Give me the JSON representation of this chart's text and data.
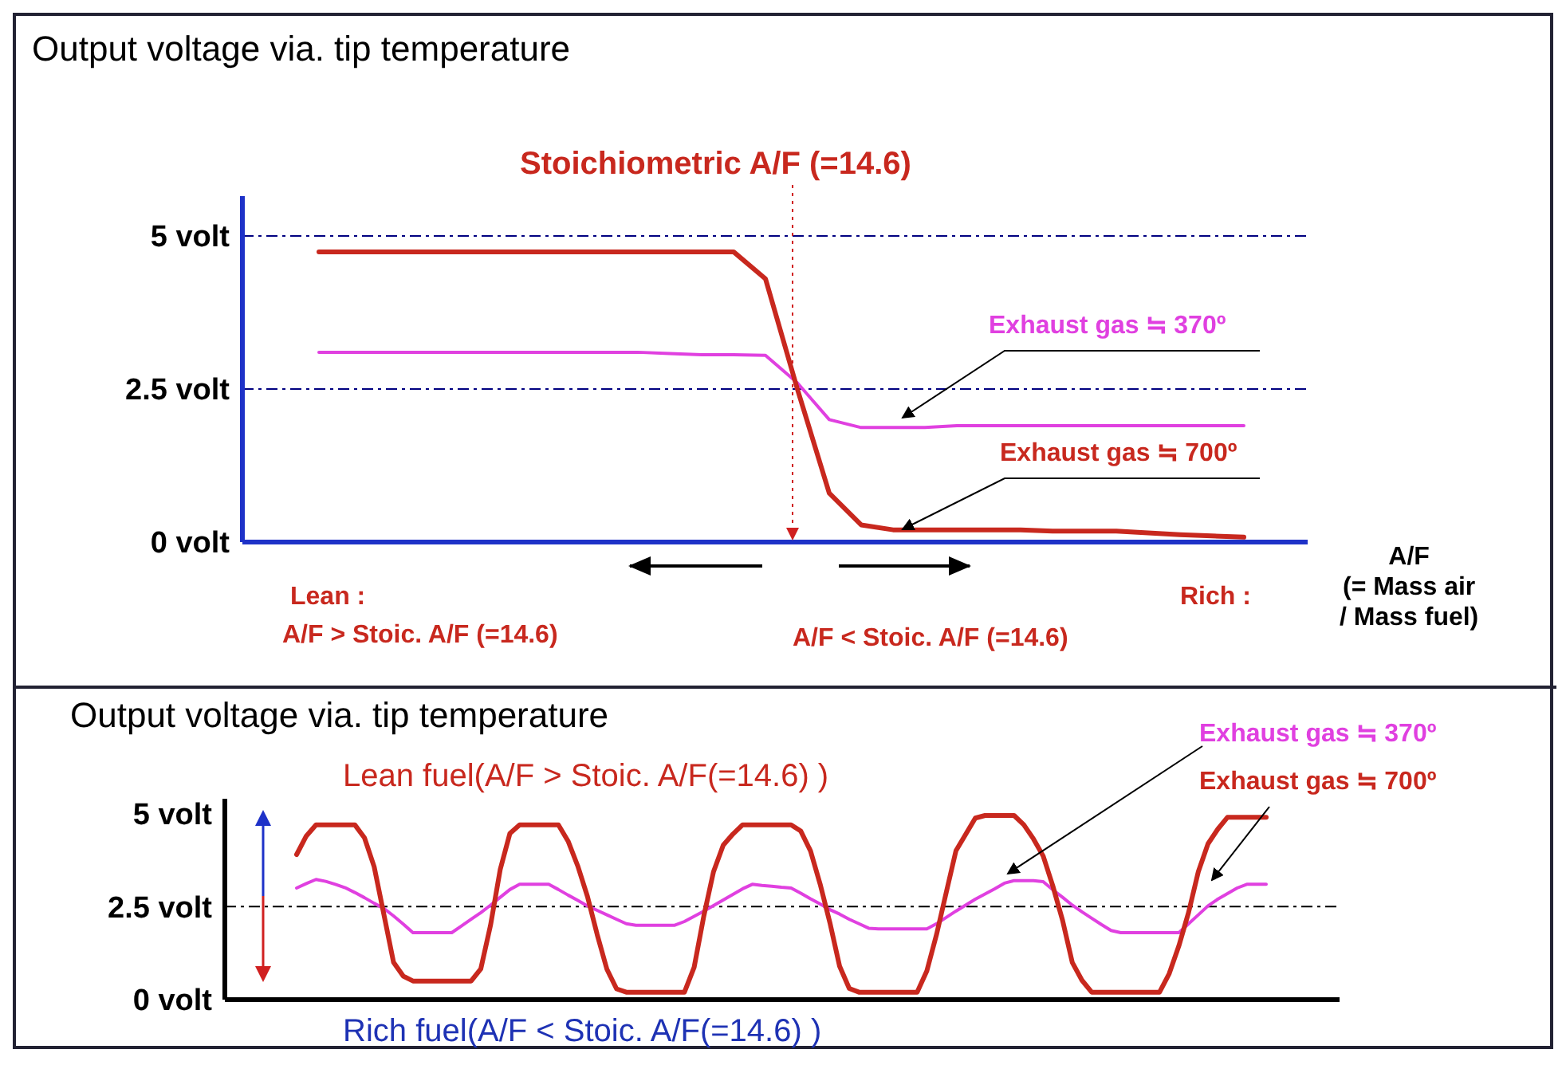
{
  "chart_data": [
    {
      "type": "line",
      "title": "Output voltage via. tip temperature",
      "xlabel": "A/F\n(= Mass air\n/ Mass fuel)",
      "marker": "none",
      "line_style": "solid",
      "grid": false,
      "tick_labels": "y",
      "ylim": [
        0,
        5.65
      ],
      "categories": [
        null,
        null,
        null,
        null,
        null,
        null,
        null,
        null,
        null,
        null,
        null,
        null,
        null,
        null,
        null,
        null,
        null,
        null,
        null,
        null,
        null,
        null,
        null,
        null,
        null,
        null,
        null,
        null,
        null,
        null,
        null,
        null,
        null
      ],
      "yticks": [
        {
          "value": 0,
          "label": "0 volt"
        },
        {
          "value": 2.5,
          "label": "2.5 volt"
        },
        {
          "value": 5,
          "label": "5 volt"
        }
      ],
      "series": [
        {
          "name": "Exhaust gas ≒ 370º",
          "color": "#e040e0",
          "values": [
            null,
            null,
            3.1,
            3.1,
            3.1,
            3.1,
            3.1,
            3.1,
            3.1,
            3.1,
            3.1,
            3.1,
            3.1,
            3.08,
            3.06,
            3.06,
            3.05,
            2.6,
            2.0,
            1.87,
            1.87,
            1.87,
            1.9,
            1.9,
            1.9,
            1.9,
            1.9,
            1.9,
            1.9,
            1.9,
            1.9,
            1.9,
            null
          ]
        },
        {
          "name": "Exhaust gas ≒ 700º",
          "color": "#c8281e",
          "values": [
            null,
            null,
            4.74,
            4.74,
            4.74,
            4.74,
            4.74,
            4.74,
            4.74,
            4.74,
            4.74,
            4.74,
            4.74,
            4.74,
            4.74,
            4.74,
            4.3,
            2.5,
            0.8,
            0.28,
            0.2,
            0.2,
            0.2,
            0.2,
            0.2,
            0.18,
            0.18,
            0.18,
            0.15,
            0.12,
            0.1,
            0.08,
            null
          ]
        }
      ],
      "ref_lines": [
        {
          "axis": "y",
          "value": 5,
          "color": "#000080",
          "line_style": "dashed"
        },
        {
          "axis": "y",
          "value": 2.5,
          "color": "#000080",
          "line_style": "dashed"
        }
      ],
      "annotations": [
        "Stoichiometric A/F (=14.6)",
        "Lean :",
        "A/F > Stoic. A/F (=14.6)",
        "Rich :",
        "A/F < Stoic. A/F (=14.6)"
      ]
    },
    {
      "type": "line",
      "title": "Output voltage via. tip temperature",
      "marker": "none",
      "line_style": "solid",
      "grid": false,
      "tick_labels": "y",
      "ylim": [
        0,
        5.4
      ],
      "categories": [
        null,
        null,
        null,
        null,
        null,
        null,
        null,
        null,
        null,
        null,
        null,
        null,
        null,
        null,
        null,
        null,
        null,
        null,
        null,
        null,
        null,
        null,
        null,
        null,
        null,
        null,
        null,
        null,
        null,
        null,
        null,
        null,
        null,
        null,
        null,
        null,
        null,
        null,
        null,
        null,
        null,
        null,
        null,
        null,
        null,
        null,
        null,
        null,
        null,
        null,
        null,
        null,
        null,
        null,
        null,
        null,
        null,
        null,
        null,
        null,
        null,
        null,
        null,
        null,
        null,
        null,
        null,
        null,
        null,
        null,
        null,
        null,
        null,
        null,
        null,
        null,
        null,
        null,
        null,
        null,
        null,
        null,
        null,
        null,
        null,
        null,
        null,
        null,
        null,
        null,
        null,
        null,
        null,
        null,
        null,
        null,
        null,
        null,
        null,
        null,
        null
      ],
      "yticks": [
        {
          "value": 0,
          "label": "0 volt"
        },
        {
          "value": 2.5,
          "label": "2.5 volt"
        },
        {
          "value": 5,
          "label": "5 volt"
        }
      ],
      "series": [
        {
          "name": "Exhaust gas ≒ 370º",
          "color": "#e040e0",
          "values": [
            3.0,
            3.12,
            3.23,
            3.18,
            3.1,
            3.01,
            2.88,
            2.74,
            2.59,
            2.45,
            2.25,
            2.03,
            1.8,
            1.8,
            1.8,
            1.8,
            1.8,
            1.98,
            2.16,
            2.34,
            2.54,
            2.75,
            2.96,
            3.1,
            3.1,
            3.1,
            3.1,
            2.96,
            2.81,
            2.67,
            2.52,
            2.4,
            2.28,
            2.16,
            2.04,
            2.0,
            2.0,
            2.0,
            2.0,
            2.0,
            2.1,
            2.24,
            2.38,
            2.53,
            2.68,
            2.83,
            2.98,
            3.1,
            3.07,
            3.05,
            3.02,
            3.0,
            2.86,
            2.71,
            2.57,
            2.42,
            2.3,
            2.16,
            2.04,
            1.92,
            1.9,
            1.9,
            1.9,
            1.9,
            1.9,
            1.9,
            2.04,
            2.21,
            2.38,
            2.54,
            2.7,
            2.84,
            2.98,
            3.13,
            3.2,
            3.2,
            3.2,
            3.17,
            2.95,
            2.75,
            2.54,
            2.36,
            2.19,
            2.02,
            1.86,
            1.8,
            1.8,
            1.8,
            1.8,
            1.8,
            1.8,
            1.8,
            2.04,
            2.28,
            2.52,
            2.7,
            2.85,
            3.0,
            3.1,
            3.1,
            3.1
          ]
        },
        {
          "name": "Exhaust gas ≒ 700º",
          "color": "#c8281e",
          "values": [
            3.9,
            4.4,
            4.7,
            4.7,
            4.7,
            4.7,
            4.7,
            4.35,
            3.57,
            2.29,
            1.0,
            0.63,
            0.5,
            0.5,
            0.5,
            0.5,
            0.5,
            0.5,
            0.5,
            0.83,
            2.0,
            3.5,
            4.47,
            4.7,
            4.7,
            4.7,
            4.7,
            4.7,
            4.26,
            3.59,
            2.77,
            1.75,
            0.82,
            0.29,
            0.2,
            0.2,
            0.2,
            0.2,
            0.2,
            0.2,
            0.2,
            0.87,
            2.25,
            3.44,
            4.15,
            4.45,
            4.7,
            4.7,
            4.7,
            4.7,
            4.7,
            4.7,
            4.53,
            4.0,
            3.1,
            2.07,
            0.9,
            0.3,
            0.2,
            0.2,
            0.2,
            0.2,
            0.2,
            0.2,
            0.2,
            0.77,
            1.75,
            2.88,
            4.0,
            4.44,
            4.88,
            4.95,
            4.95,
            4.95,
            4.95,
            4.7,
            4.32,
            3.86,
            3.05,
            2.13,
            1.0,
            0.52,
            0.2,
            0.2,
            0.2,
            0.2,
            0.2,
            0.2,
            0.2,
            0.2,
            0.7,
            1.45,
            2.35,
            3.44,
            4.19,
            4.58,
            4.9,
            4.9,
            4.9,
            4.9,
            4.9
          ]
        }
      ],
      "ref_lines": [
        {
          "axis": "y",
          "value": 2.5,
          "color": "#000000",
          "line_style": "dashed"
        }
      ],
      "annotations": [
        "Lean fuel(A/F > Stoic. A/F(=14.6) )",
        "Rich fuel(A/F < Stoic. A/F(=14.6) )"
      ]
    }
  ]
}
